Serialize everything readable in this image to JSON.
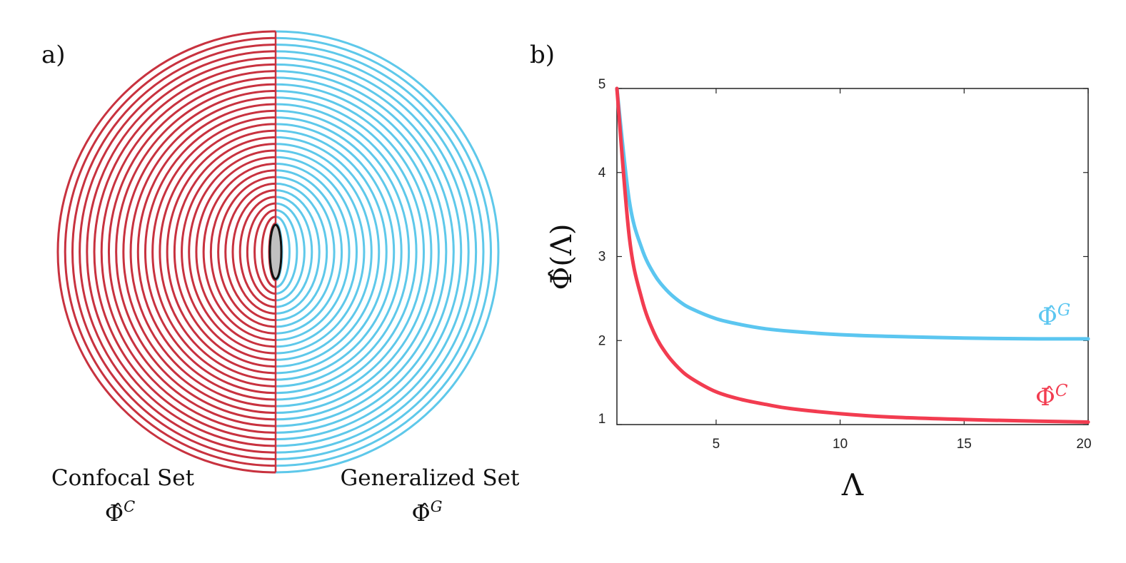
{
  "panel_a": {
    "label": "a)",
    "left_caption": "Confocal Set",
    "left_symbol": "Φ̂",
    "left_superscript": "C",
    "right_caption": "Generalized Set",
    "right_symbol": "Φ̂",
    "right_superscript": "G",
    "colors": {
      "confocal": "#c8323f",
      "generalized": "#5ec8ea",
      "ellipse_fill": "#c0c0c0"
    }
  },
  "panel_b": {
    "label": "b)"
  },
  "chart_data": {
    "type": "line",
    "xlabel": "Λ",
    "ylabel": "Φ̂(Λ)",
    "xlim": [
      1,
      20
    ],
    "ylim": [
      1,
      5
    ],
    "xticks": [
      5,
      10,
      15,
      20
    ],
    "yticks": [
      1,
      2,
      3,
      4,
      5
    ],
    "grid": false,
    "series": [
      {
        "name": "Φ̂G",
        "symbol": "Φ̂",
        "superscript": "G",
        "color": "#5bc6f0",
        "x": [
          1,
          1.5,
          2,
          2.5,
          3,
          3.5,
          4,
          5,
          6,
          7,
          8,
          10,
          12,
          15,
          18,
          20
        ],
        "y": [
          5.0,
          3.66,
          3.1,
          2.79,
          2.6,
          2.47,
          2.38,
          2.26,
          2.19,
          2.14,
          2.11,
          2.07,
          2.05,
          2.03,
          2.02,
          2.02
        ]
      },
      {
        "name": "Φ̂C",
        "symbol": "Φ̂",
        "superscript": "C",
        "color": "#f23c50",
        "x": [
          1,
          1.5,
          2,
          2.5,
          3,
          3.5,
          4,
          5,
          6,
          7,
          8,
          10,
          12,
          15,
          18,
          20
        ],
        "y": [
          5.0,
          3.23,
          2.5,
          2.09,
          1.84,
          1.67,
          1.55,
          1.39,
          1.3,
          1.24,
          1.19,
          1.13,
          1.09,
          1.06,
          1.04,
          1.03
        ]
      }
    ]
  }
}
